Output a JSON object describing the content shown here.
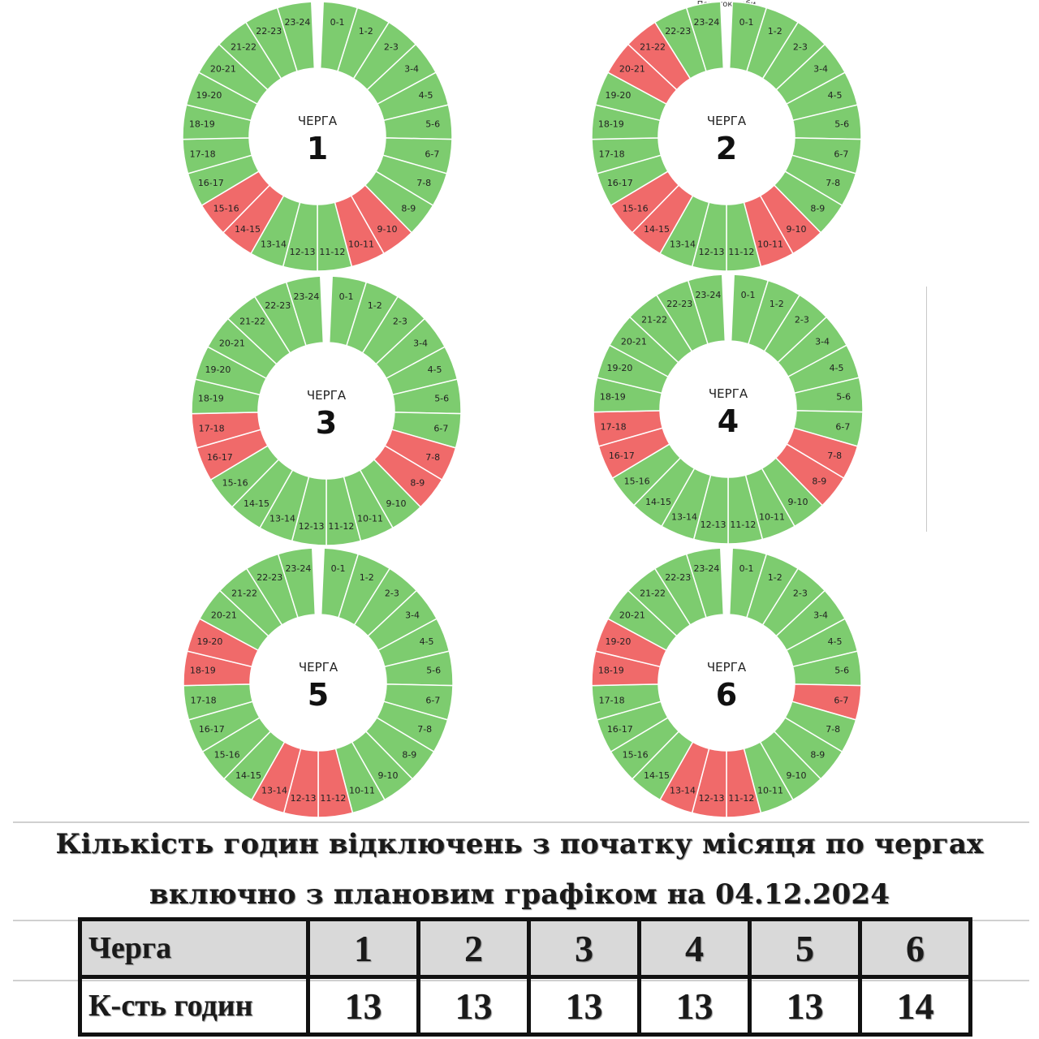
{
  "top_caption": "Початок доби",
  "colors": {
    "on": "#7dcc6f",
    "off": "#f06a6a"
  },
  "chart_data": [
    {
      "type": "pie",
      "queue_word": "ЧЕРГА",
      "queue_number": "1",
      "hours": [
        "0-1",
        "1-2",
        "2-3",
        "3-4",
        "4-5",
        "5-6",
        "6-7",
        "7-8",
        "8-9",
        "9-10",
        "10-11",
        "11-12",
        "12-13",
        "13-14",
        "14-15",
        "15-16",
        "16-17",
        "17-18",
        "18-19",
        "19-20",
        "20-21",
        "21-22",
        "22-23",
        "23-24"
      ],
      "off_hours": [
        "9-10",
        "10-11",
        "14-15",
        "15-16"
      ]
    },
    {
      "type": "pie",
      "queue_word": "ЧЕРГА",
      "queue_number": "2",
      "hours": [
        "0-1",
        "1-2",
        "2-3",
        "3-4",
        "4-5",
        "5-6",
        "6-7",
        "7-8",
        "8-9",
        "9-10",
        "10-11",
        "11-12",
        "12-13",
        "13-14",
        "14-15",
        "15-16",
        "16-17",
        "17-18",
        "18-19",
        "19-20",
        "20-21",
        "21-22",
        "22-23",
        "23-24"
      ],
      "off_hours": [
        "9-10",
        "10-11",
        "14-15",
        "15-16",
        "20-21",
        "21-22"
      ]
    },
    {
      "type": "pie",
      "queue_word": "ЧЕРГА",
      "queue_number": "3",
      "hours": [
        "0-1",
        "1-2",
        "2-3",
        "3-4",
        "4-5",
        "5-6",
        "6-7",
        "7-8",
        "8-9",
        "9-10",
        "10-11",
        "11-12",
        "12-13",
        "13-14",
        "14-15",
        "15-16",
        "16-17",
        "17-18",
        "18-19",
        "19-20",
        "20-21",
        "21-22",
        "22-23",
        "23-24"
      ],
      "off_hours": [
        "7-8",
        "8-9",
        "16-17",
        "17-18"
      ]
    },
    {
      "type": "pie",
      "queue_word": "ЧЕРГА",
      "queue_number": "4",
      "hours": [
        "0-1",
        "1-2",
        "2-3",
        "3-4",
        "4-5",
        "5-6",
        "6-7",
        "7-8",
        "8-9",
        "9-10",
        "10-11",
        "11-12",
        "12-13",
        "13-14",
        "14-15",
        "15-16",
        "16-17",
        "17-18",
        "18-19",
        "19-20",
        "20-21",
        "21-22",
        "22-23",
        "23-24"
      ],
      "off_hours": [
        "7-8",
        "8-9",
        "16-17",
        "17-18"
      ]
    },
    {
      "type": "pie",
      "queue_word": "ЧЕРГА",
      "queue_number": "5",
      "hours": [
        "0-1",
        "1-2",
        "2-3",
        "3-4",
        "4-5",
        "5-6",
        "6-7",
        "7-8",
        "8-9",
        "9-10",
        "10-11",
        "11-12",
        "12-13",
        "13-14",
        "14-15",
        "15-16",
        "16-17",
        "17-18",
        "18-19",
        "19-20",
        "20-21",
        "21-22",
        "22-23",
        "23-24"
      ],
      "off_hours": [
        "11-12",
        "12-13",
        "13-14",
        "18-19",
        "19-20"
      ]
    },
    {
      "type": "pie",
      "queue_word": "ЧЕРГА",
      "queue_number": "6",
      "hours": [
        "0-1",
        "1-2",
        "2-3",
        "3-4",
        "4-5",
        "5-6",
        "6-7",
        "7-8",
        "8-9",
        "9-10",
        "10-11",
        "11-12",
        "12-13",
        "13-14",
        "14-15",
        "15-16",
        "16-17",
        "17-18",
        "18-19",
        "19-20",
        "20-21",
        "21-22",
        "22-23",
        "23-24"
      ],
      "off_hours": [
        "6-7",
        "11-12",
        "12-13",
        "13-14",
        "18-19",
        "19-20"
      ]
    }
  ],
  "summary": {
    "title_line1": "Кількість годин відключень з початку місяця по чергах",
    "title_line2": "включно з плановим графіком на 04.12.2024",
    "header_label": "Черга",
    "queues": [
      "1",
      "2",
      "3",
      "4",
      "5",
      "6"
    ],
    "row_label": "К-сть годин",
    "hours": [
      "13",
      "13",
      "13",
      "13",
      "13",
      "14"
    ]
  }
}
